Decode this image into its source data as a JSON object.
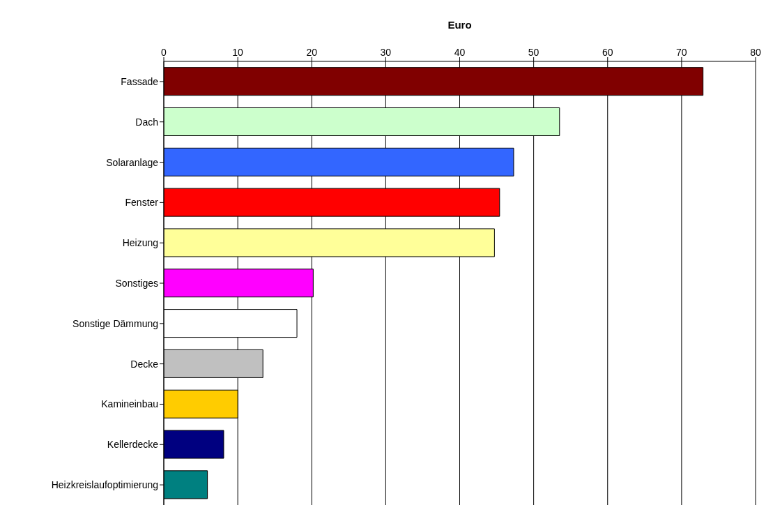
{
  "chart_data": {
    "type": "bar",
    "orientation": "horizontal",
    "xlabel": "Euro",
    "categories": [
      "Fassade",
      "Dach",
      "Solaranlage",
      "Fenster",
      "Heizung",
      "Sonstiges",
      "Sonstige Dämmung",
      "Decke",
      "Kamineinbau",
      "Kellerdecke",
      "Heizkreislaufoptimierung"
    ],
    "values": [
      72.9,
      53.5,
      47.3,
      45.4,
      44.7,
      20.2,
      18.0,
      13.4,
      10.0,
      8.1,
      5.9
    ],
    "colors": [
      "#800000",
      "#ccffcc",
      "#3366ff",
      "#ff0000",
      "#ffff99",
      "#ff00ff",
      "#ffffff",
      "#c0c0c0",
      "#ffcc00",
      "#000080",
      "#008080"
    ],
    "xlim": [
      0,
      80
    ],
    "xticks": [
      0,
      10,
      20,
      30,
      40,
      50,
      60,
      70,
      80
    ],
    "grid": "x"
  }
}
